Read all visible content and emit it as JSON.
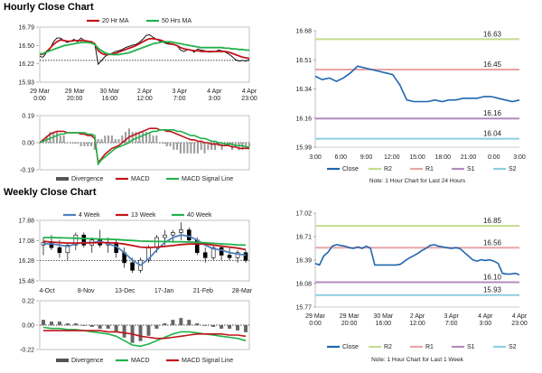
{
  "sections": [
    {
      "title": "Hourly Close Chart"
    },
    {
      "title": "Weekly Close Chart"
    }
  ],
  "chart_data": [
    {
      "id": "hourly_price",
      "type": "line",
      "panel": "top-left",
      "legend": [
        "20 Hr MA",
        "50 Hrs MA"
      ],
      "ylim": [
        15.93,
        16.79
      ],
      "yticks": [
        "16.79",
        "16.50",
        "16.22",
        "15.93"
      ],
      "xticks": [
        [
          "29 Mar",
          "0:00"
        ],
        [
          "29 Mar",
          "20:00"
        ],
        [
          "30 Mar",
          "16:00"
        ],
        [
          "2 Apr",
          "12:00"
        ],
        [
          "3 Apr",
          "7:00"
        ],
        [
          "4 Apr",
          "3:00"
        ],
        [
          "4 Apr",
          "23:00"
        ]
      ],
      "reference_line": 16.27,
      "series": [
        {
          "name": "Close",
          "color": "#000000",
          "values": [
            16.33,
            16.32,
            16.4,
            16.45,
            16.56,
            16.62,
            16.62,
            16.58,
            16.55,
            16.57,
            16.6,
            16.56,
            16.62,
            16.58,
            16.55,
            16.57,
            16.53,
            16.21,
            16.27,
            16.33,
            16.37,
            16.38,
            16.41,
            16.42,
            16.44,
            16.47,
            16.49,
            16.51,
            16.52,
            16.55,
            16.6,
            16.66,
            16.67,
            16.63,
            16.6,
            16.57,
            16.55,
            16.53,
            16.52,
            16.52,
            16.5,
            16.43,
            16.41,
            16.44,
            16.43,
            16.4,
            16.45,
            16.43,
            16.42,
            16.4,
            16.4,
            16.41,
            16.43,
            16.42,
            16.4,
            16.37,
            16.33,
            16.28,
            16.26,
            16.27,
            16.26,
            16.28
          ]
        },
        {
          "name": "20 Hr MA",
          "color": "#c0151b",
          "values": [
            16.36,
            16.37,
            16.41,
            16.46,
            16.52,
            16.56,
            16.59,
            16.58,
            16.57,
            16.57,
            16.58,
            16.58,
            16.58,
            16.58,
            16.57,
            16.56,
            16.53,
            16.42,
            16.38,
            16.36,
            16.36,
            16.37,
            16.38,
            16.4,
            16.42,
            16.44,
            16.46,
            16.48,
            16.5,
            16.53,
            16.56,
            16.59,
            16.61,
            16.61,
            16.6,
            16.59,
            16.57,
            16.55,
            16.53,
            16.52,
            16.5,
            16.47,
            16.45,
            16.44,
            16.43,
            16.42,
            16.42,
            16.41,
            16.41,
            16.41,
            16.41,
            16.41,
            16.41,
            16.41,
            16.41,
            16.4,
            16.38,
            16.36,
            16.34,
            16.32,
            16.31,
            16.3
          ]
        },
        {
          "name": "50 Hrs MA",
          "color": "#22b24c",
          "values": [
            16.37,
            16.38,
            16.4,
            16.42,
            16.44,
            16.46,
            16.48,
            16.5,
            16.51,
            16.52,
            16.53,
            16.54,
            16.55,
            16.55,
            16.55,
            16.54,
            16.52,
            16.46,
            16.42,
            16.39,
            16.37,
            16.36,
            16.36,
            16.36,
            16.37,
            16.38,
            16.39,
            16.41,
            16.43,
            16.45,
            16.47,
            16.49,
            16.51,
            16.53,
            16.54,
            16.55,
            16.56,
            16.56,
            16.56,
            16.55,
            16.54,
            16.53,
            16.52,
            16.51,
            16.5,
            16.49,
            16.48,
            16.47,
            16.47,
            16.47,
            16.47,
            16.47,
            16.47,
            16.47,
            16.46,
            16.46,
            16.45,
            16.45,
            16.44,
            16.44,
            16.43,
            16.43
          ]
        }
      ]
    },
    {
      "id": "hourly_macd",
      "type": "line",
      "panel": "top-left-lower",
      "ylim": [
        -0.19,
        0.19
      ],
      "yticks": [
        "0.19",
        "0.00",
        "-0.19"
      ],
      "legend": [
        "Divergence",
        "MACD",
        "MACD Signal Line"
      ],
      "series": [
        {
          "name": "MACD",
          "color": "#c0151b",
          "values": [
            0.0,
            0.02,
            0.04,
            0.06,
            0.07,
            0.08,
            0.08,
            0.08,
            0.07,
            0.07,
            0.07,
            0.07,
            0.06,
            0.06,
            0.05,
            0.05,
            0.03,
            -0.14,
            -0.11,
            -0.08,
            -0.06,
            -0.04,
            -0.03,
            -0.02,
            0.0,
            0.02,
            0.04,
            0.05,
            0.06,
            0.07,
            0.08,
            0.09,
            0.1,
            0.1,
            0.1,
            0.09,
            0.09,
            0.08,
            0.08,
            0.07,
            0.06,
            0.05,
            0.04,
            0.03,
            0.02,
            0.02,
            0.01,
            0.01,
            0.0,
            0.0,
            -0.01,
            -0.01,
            -0.01,
            -0.02,
            -0.02,
            -0.02,
            -0.03,
            -0.03,
            -0.04,
            -0.04,
            -0.04,
            -0.04
          ]
        },
        {
          "name": "MACD Signal Line",
          "color": "#22b24c",
          "values": [
            0.0,
            0.01,
            0.02,
            0.03,
            0.04,
            0.05,
            0.06,
            0.06,
            0.07,
            0.07,
            0.07,
            0.07,
            0.07,
            0.07,
            0.06,
            0.06,
            0.05,
            -0.15,
            -0.12,
            -0.1,
            -0.08,
            -0.06,
            -0.04,
            -0.03,
            -0.02,
            -0.01,
            0.0,
            0.02,
            0.03,
            0.04,
            0.05,
            0.06,
            0.07,
            0.08,
            0.08,
            0.09,
            0.09,
            0.09,
            0.09,
            0.09,
            0.08,
            0.08,
            0.07,
            0.06,
            0.05,
            0.05,
            0.04,
            0.03,
            0.03,
            0.02,
            0.01,
            0.01,
            0.0,
            0.0,
            -0.01,
            -0.01,
            -0.01,
            -0.02,
            -0.02,
            -0.02,
            -0.03,
            -0.03
          ]
        }
      ]
    },
    {
      "id": "hourly_pivot",
      "type": "line",
      "panel": "top-right",
      "ylim": [
        15.99,
        16.68
      ],
      "yticks": [
        "16.68",
        "16.51",
        "16.34",
        "16.16",
        "15.99"
      ],
      "xticks": [
        "3:00",
        "6:00",
        "9:00",
        "12:00",
        "15:00",
        "18:00",
        "21:00",
        "0:00",
        "3:00"
      ],
      "levels": [
        {
          "name": "R2",
          "value": 16.63,
          "label": "16.63",
          "color": "#c5dc8f"
        },
        {
          "name": "R1",
          "value": 16.45,
          "label": "16.45",
          "color": "#e8a5a5"
        },
        {
          "name": "S1",
          "value": 16.16,
          "label": "16.16",
          "color": "#b28bbf"
        },
        {
          "name": "S2",
          "value": 16.04,
          "label": "16.04",
          "color": "#8ecfe0"
        }
      ],
      "legend": [
        "Close",
        "R2",
        "R1",
        "S1",
        "S2"
      ],
      "note": "Note: 1 Hour Chart for Last 24 Hours",
      "series": [
        {
          "name": "Close",
          "color": "#1f66b0",
          "values": [
            16.41,
            16.39,
            16.4,
            16.38,
            16.4,
            16.43,
            16.47,
            16.46,
            16.45,
            16.44,
            16.43,
            16.42,
            16.36,
            16.27,
            16.26,
            16.26,
            16.26,
            16.27,
            16.26,
            16.27,
            16.27,
            16.28,
            16.28,
            16.28,
            16.29,
            16.29,
            16.28,
            16.27,
            16.26,
            16.27
          ]
        }
      ]
    },
    {
      "id": "weekly_price",
      "type": "candlestick",
      "panel": "bottom-left",
      "legend": [
        "4 Week",
        "13 Week",
        "40 Week"
      ],
      "ylim": [
        15.48,
        17.88
      ],
      "yticks": [
        "17.88",
        "17.08",
        "16.28",
        "15.48"
      ],
      "xticks": [
        "4-Oct",
        "8-Nov",
        "13-Dec",
        "17-Jan",
        "21-Feb",
        "28-Mar"
      ],
      "candles": [
        [
          16.9,
          17.2,
          16.5,
          17.0
        ],
        [
          17.0,
          17.3,
          16.7,
          16.8
        ],
        [
          16.8,
          17.1,
          16.4,
          16.6
        ],
        [
          16.6,
          17.0,
          16.3,
          16.9
        ],
        [
          16.9,
          17.4,
          16.7,
          17.3
        ],
        [
          17.3,
          17.4,
          16.8,
          16.9
        ],
        [
          16.9,
          17.2,
          16.6,
          17.1
        ],
        [
          17.1,
          17.5,
          16.8,
          16.9
        ],
        [
          16.9,
          17.2,
          16.6,
          17.0
        ],
        [
          17.0,
          17.1,
          16.4,
          16.6
        ],
        [
          16.6,
          16.8,
          16.0,
          16.2
        ],
        [
          16.2,
          16.4,
          15.8,
          15.9
        ],
        [
          15.9,
          16.4,
          15.8,
          16.3
        ],
        [
          16.3,
          16.9,
          16.2,
          16.8
        ],
        [
          16.8,
          17.3,
          16.6,
          17.2
        ],
        [
          17.2,
          17.5,
          16.9,
          17.3
        ],
        [
          17.3,
          17.5,
          17.0,
          17.4
        ],
        [
          17.4,
          17.8,
          17.1,
          17.5
        ],
        [
          17.5,
          17.6,
          17.0,
          17.1
        ],
        [
          17.1,
          17.2,
          16.5,
          16.6
        ],
        [
          16.6,
          16.8,
          16.2,
          16.4
        ],
        [
          16.4,
          16.9,
          16.3,
          16.8
        ],
        [
          16.8,
          16.9,
          16.3,
          16.5
        ],
        [
          16.5,
          16.8,
          16.3,
          16.4
        ],
        [
          16.4,
          16.7,
          16.2,
          16.6
        ],
        [
          16.6,
          16.7,
          16.2,
          16.3
        ]
      ],
      "series": [
        {
          "name": "4 Week",
          "color": "#4f81bd",
          "values": [
            16.95,
            16.95,
            16.9,
            16.85,
            16.95,
            17.0,
            17.0,
            17.05,
            16.95,
            16.85,
            16.6,
            16.3,
            16.1,
            16.35,
            16.7,
            17.0,
            17.2,
            17.3,
            17.25,
            17.1,
            16.9,
            16.75,
            16.7,
            16.6,
            16.55,
            16.5
          ]
        },
        {
          "name": "13 Week",
          "color": "#c0151b",
          "values": [
            17.05,
            17.02,
            17.0,
            16.98,
            16.98,
            16.98,
            16.99,
            17.0,
            17.0,
            16.98,
            16.94,
            16.88,
            16.82,
            16.8,
            16.82,
            16.85,
            16.88,
            16.92,
            16.94,
            16.95,
            16.94,
            16.9,
            16.86,
            16.82,
            16.78,
            16.72
          ]
        },
        {
          "name": "40 Week",
          "color": "#22b24c",
          "values": [
            17.2,
            17.2,
            17.19,
            17.18,
            17.17,
            17.16,
            17.15,
            17.14,
            17.13,
            17.12,
            17.1,
            17.08,
            17.06,
            17.05,
            17.04,
            17.04,
            17.03,
            17.03,
            17.02,
            17.01,
            16.99,
            16.97,
            16.95,
            16.93,
            16.91,
            16.9
          ]
        }
      ]
    },
    {
      "id": "weekly_macd",
      "type": "line",
      "panel": "bottom-left-lower",
      "ylim": [
        -0.22,
        0.22
      ],
      "yticks": [
        "0.22",
        "0.00",
        "-0.22"
      ],
      "legend": [
        "Divergence",
        "MACD",
        "MACD Signal Line"
      ],
      "series": [
        {
          "name": "MACD",
          "color": "#22b24c",
          "values": [
            -0.02,
            -0.03,
            -0.03,
            -0.04,
            -0.04,
            -0.05,
            -0.06,
            -0.07,
            -0.08,
            -0.1,
            -0.14,
            -0.18,
            -0.19,
            -0.17,
            -0.14,
            -0.11,
            -0.08,
            -0.06,
            -0.06,
            -0.07,
            -0.08,
            -0.09,
            -0.1,
            -0.11,
            -0.12,
            -0.14
          ]
        },
        {
          "name": "MACD Signal Line",
          "color": "#c0151b",
          "values": [
            -0.05,
            -0.05,
            -0.05,
            -0.05,
            -0.05,
            -0.05,
            -0.05,
            -0.05,
            -0.06,
            -0.06,
            -0.07,
            -0.08,
            -0.1,
            -0.11,
            -0.12,
            -0.12,
            -0.11,
            -0.1,
            -0.09,
            -0.08,
            -0.08,
            -0.08,
            -0.08,
            -0.09,
            -0.09,
            -0.1
          ]
        }
      ]
    },
    {
      "id": "weekly_pivot",
      "type": "line",
      "panel": "bottom-right",
      "ylim": [
        15.77,
        17.02
      ],
      "yticks": [
        "17.02",
        "16.71",
        "16.39",
        "16.08",
        "15.77"
      ],
      "xticks": [
        [
          "29 Mar",
          "0:00"
        ],
        [
          "29 Mar",
          "20:00"
        ],
        [
          "30 Mar",
          "16:00"
        ],
        [
          "2 Apr",
          "12:00"
        ],
        [
          "3 Apr",
          "7:00"
        ],
        [
          "4 Apr",
          "3:00"
        ],
        [
          "4 Apr",
          "23:00"
        ]
      ],
      "levels": [
        {
          "name": "R2",
          "value": 16.85,
          "label": "16.85",
          "color": "#c5dc8f"
        },
        {
          "name": "R1",
          "value": 16.56,
          "label": "16.56",
          "color": "#e8a5a5"
        },
        {
          "name": "S1",
          "value": 16.1,
          "label": "16.10",
          "color": "#b28bbf"
        },
        {
          "name": "S2",
          "value": 15.93,
          "label": "15.93",
          "color": "#8ecfe0"
        }
      ],
      "legend": [
        "Close",
        "R2",
        "R1",
        "S1",
        "S2"
      ],
      "note": "Note: 1 Hour Chart for Last 1 Week",
      "series": [
        {
          "name": "Close",
          "color": "#1f66b0",
          "values": [
            16.35,
            16.33,
            16.45,
            16.5,
            16.58,
            16.6,
            16.59,
            16.58,
            16.56,
            16.55,
            16.57,
            16.55,
            16.58,
            16.55,
            16.33,
            16.33,
            16.33,
            16.33,
            16.33,
            16.33,
            16.34,
            16.38,
            16.42,
            16.45,
            16.48,
            16.52,
            16.55,
            16.59,
            16.6,
            16.58,
            16.57,
            16.56,
            16.55,
            16.56,
            16.55,
            16.5,
            16.45,
            16.4,
            16.38,
            16.4,
            16.39,
            16.4,
            16.38,
            16.35,
            16.22,
            16.21,
            16.21,
            16.22,
            16.2
          ]
        }
      ]
    }
  ]
}
